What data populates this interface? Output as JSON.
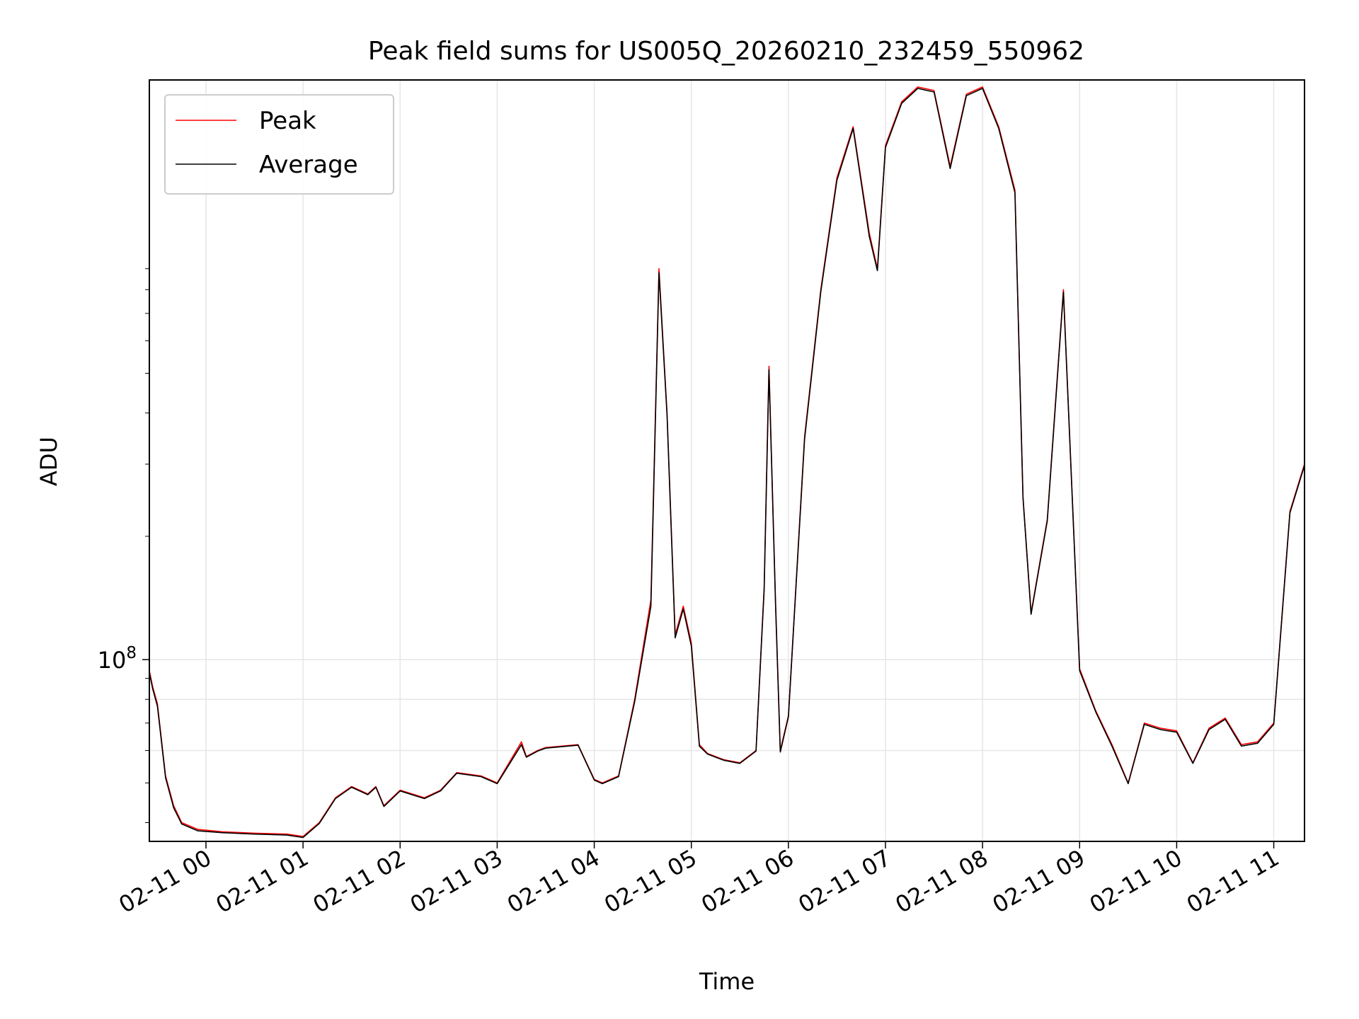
{
  "chart_data": {
    "type": "line",
    "title": "Peak field sums for US005Q_20260210_232459_550962",
    "xlabel": "Time",
    "ylabel": "ADU",
    "y_scale": "log",
    "y_tick_labels": [
      "10^8"
    ],
    "x_tick_labels": [
      "02-11 00",
      "02-11 01",
      "02-11 02",
      "02-11 03",
      "02-11 04",
      "02-11 05",
      "02-11 06",
      "02-11 07",
      "02-11 08",
      "02-11 09",
      "02-11 10",
      "02-11 11"
    ],
    "x_range": [
      "2026-02-10 23:25",
      "2026-02-11 11:19"
    ],
    "y_range": [
      36000000,
      2600000000
    ],
    "grid": true,
    "legend_position": "upper left",
    "x": [
      "2026-02-10 23:25",
      "2026-02-10 23:27",
      "2026-02-10 23:30",
      "2026-02-10 23:35",
      "2026-02-10 23:40",
      "2026-02-10 23:45",
      "2026-02-10 23:55",
      "2026-02-11 00:10",
      "2026-02-11 00:30",
      "2026-02-11 00:50",
      "2026-02-11 01:00",
      "2026-02-11 01:10",
      "2026-02-11 01:20",
      "2026-02-11 01:30",
      "2026-02-11 01:40",
      "2026-02-11 01:45",
      "2026-02-11 01:50",
      "2026-02-11 02:00",
      "2026-02-11 02:15",
      "2026-02-11 02:25",
      "2026-02-11 02:35",
      "2026-02-11 02:50",
      "2026-02-11 03:00",
      "2026-02-11 03:15",
      "2026-02-11 03:18",
      "2026-02-11 03:25",
      "2026-02-11 03:30",
      "2026-02-11 03:50",
      "2026-02-11 04:00",
      "2026-02-11 04:05",
      "2026-02-11 04:15",
      "2026-02-11 04:25",
      "2026-02-11 04:35",
      "2026-02-11 04:40",
      "2026-02-11 04:45",
      "2026-02-11 04:50",
      "2026-02-11 04:55",
      "2026-02-11 05:00",
      "2026-02-11 05:05",
      "2026-02-11 05:10",
      "2026-02-11 05:20",
      "2026-02-11 05:30",
      "2026-02-11 05:40",
      "2026-02-11 05:45",
      "2026-02-11 05:48",
      "2026-02-11 05:52",
      "2026-02-11 05:55",
      "2026-02-11 06:00",
      "2026-02-11 06:10",
      "2026-02-11 06:20",
      "2026-02-11 06:30",
      "2026-02-11 06:40",
      "2026-02-11 06:50",
      "2026-02-11 06:55",
      "2026-02-11 07:00",
      "2026-02-11 07:10",
      "2026-02-11 07:20",
      "2026-02-11 07:30",
      "2026-02-11 07:40",
      "2026-02-11 07:50",
      "2026-02-11 08:00",
      "2026-02-11 08:10",
      "2026-02-11 08:20",
      "2026-02-11 08:25",
      "2026-02-11 08:30",
      "2026-02-11 08:40",
      "2026-02-11 08:50",
      "2026-02-11 09:00",
      "2026-02-11 09:10",
      "2026-02-11 09:20",
      "2026-02-11 09:30",
      "2026-02-11 09:40",
      "2026-02-11 09:50",
      "2026-02-11 10:00",
      "2026-02-11 10:10",
      "2026-02-11 10:20",
      "2026-02-11 10:30",
      "2026-02-11 10:40",
      "2026-02-11 10:50",
      "2026-02-11 11:00",
      "2026-02-11 11:10",
      "2026-02-11 11:19"
    ],
    "series": [
      {
        "name": "Peak",
        "color": "#ff0000",
        "values": [
          94000000,
          86000000,
          78000000,
          52000000,
          44000000,
          40000000,
          38500000,
          38000000,
          37700000,
          37500000,
          37000000,
          40000000,
          46000000,
          49000000,
          47000000,
          49000000,
          44000000,
          48000000,
          46000000,
          48000000,
          53000000,
          52000000,
          50000000,
          63000000,
          58000000,
          60000000,
          61000000,
          62000000,
          51000000,
          50000000,
          52000000,
          80000000,
          140000000,
          900000000,
          400000000,
          115000000,
          135000000,
          110000000,
          62000000,
          59000000,
          57000000,
          56000000,
          60000000,
          150000000,
          520000000,
          140000000,
          60000000,
          73000000,
          350000000,
          800000000,
          1500000000,
          2000000000,
          1100000000,
          900000000,
          1800000000,
          2300000000,
          2500000000,
          2450000000,
          1600000000,
          2400000000,
          2500000000,
          2000000000,
          1400000000,
          250000000,
          130000000,
          220000000,
          800000000,
          95000000,
          75000000,
          62000000,
          50000000,
          70000000,
          68000000,
          67000000,
          56000000,
          68000000,
          72000000,
          62000000,
          63000000,
          70000000,
          230000000,
          300000000
        ]
      },
      {
        "name": "Average",
        "color": "#000000",
        "values": [
          93000000,
          85000000,
          77000000,
          51500000,
          43500000,
          39700000,
          38200000,
          37800000,
          37500000,
          37300000,
          36800000,
          39800000,
          45800000,
          48800000,
          46800000,
          48800000,
          43800000,
          47800000,
          45800000,
          47800000,
          52800000,
          51800000,
          49800000,
          62000000,
          57800000,
          59800000,
          60800000,
          61800000,
          50800000,
          49800000,
          51800000,
          79000000,
          135000000,
          880000000,
          395000000,
          113000000,
          133000000,
          108000000,
          61500000,
          58800000,
          56800000,
          55800000,
          59800000,
          148000000,
          510000000,
          138000000,
          59500000,
          72500000,
          345000000,
          790000000,
          1480000000,
          1980000000,
          1080000000,
          890000000,
          1780000000,
          2280000000,
          2480000000,
          2430000000,
          1580000000,
          2380000000,
          2480000000,
          1980000000,
          1380000000,
          248000000,
          129000000,
          218000000,
          790000000,
          94000000,
          74500000,
          61500000,
          49800000,
          69500000,
          67500000,
          66500000,
          55800000,
          67500000,
          71500000,
          61500000,
          62500000,
          69500000,
          228000000,
          298000000
        ]
      }
    ]
  }
}
